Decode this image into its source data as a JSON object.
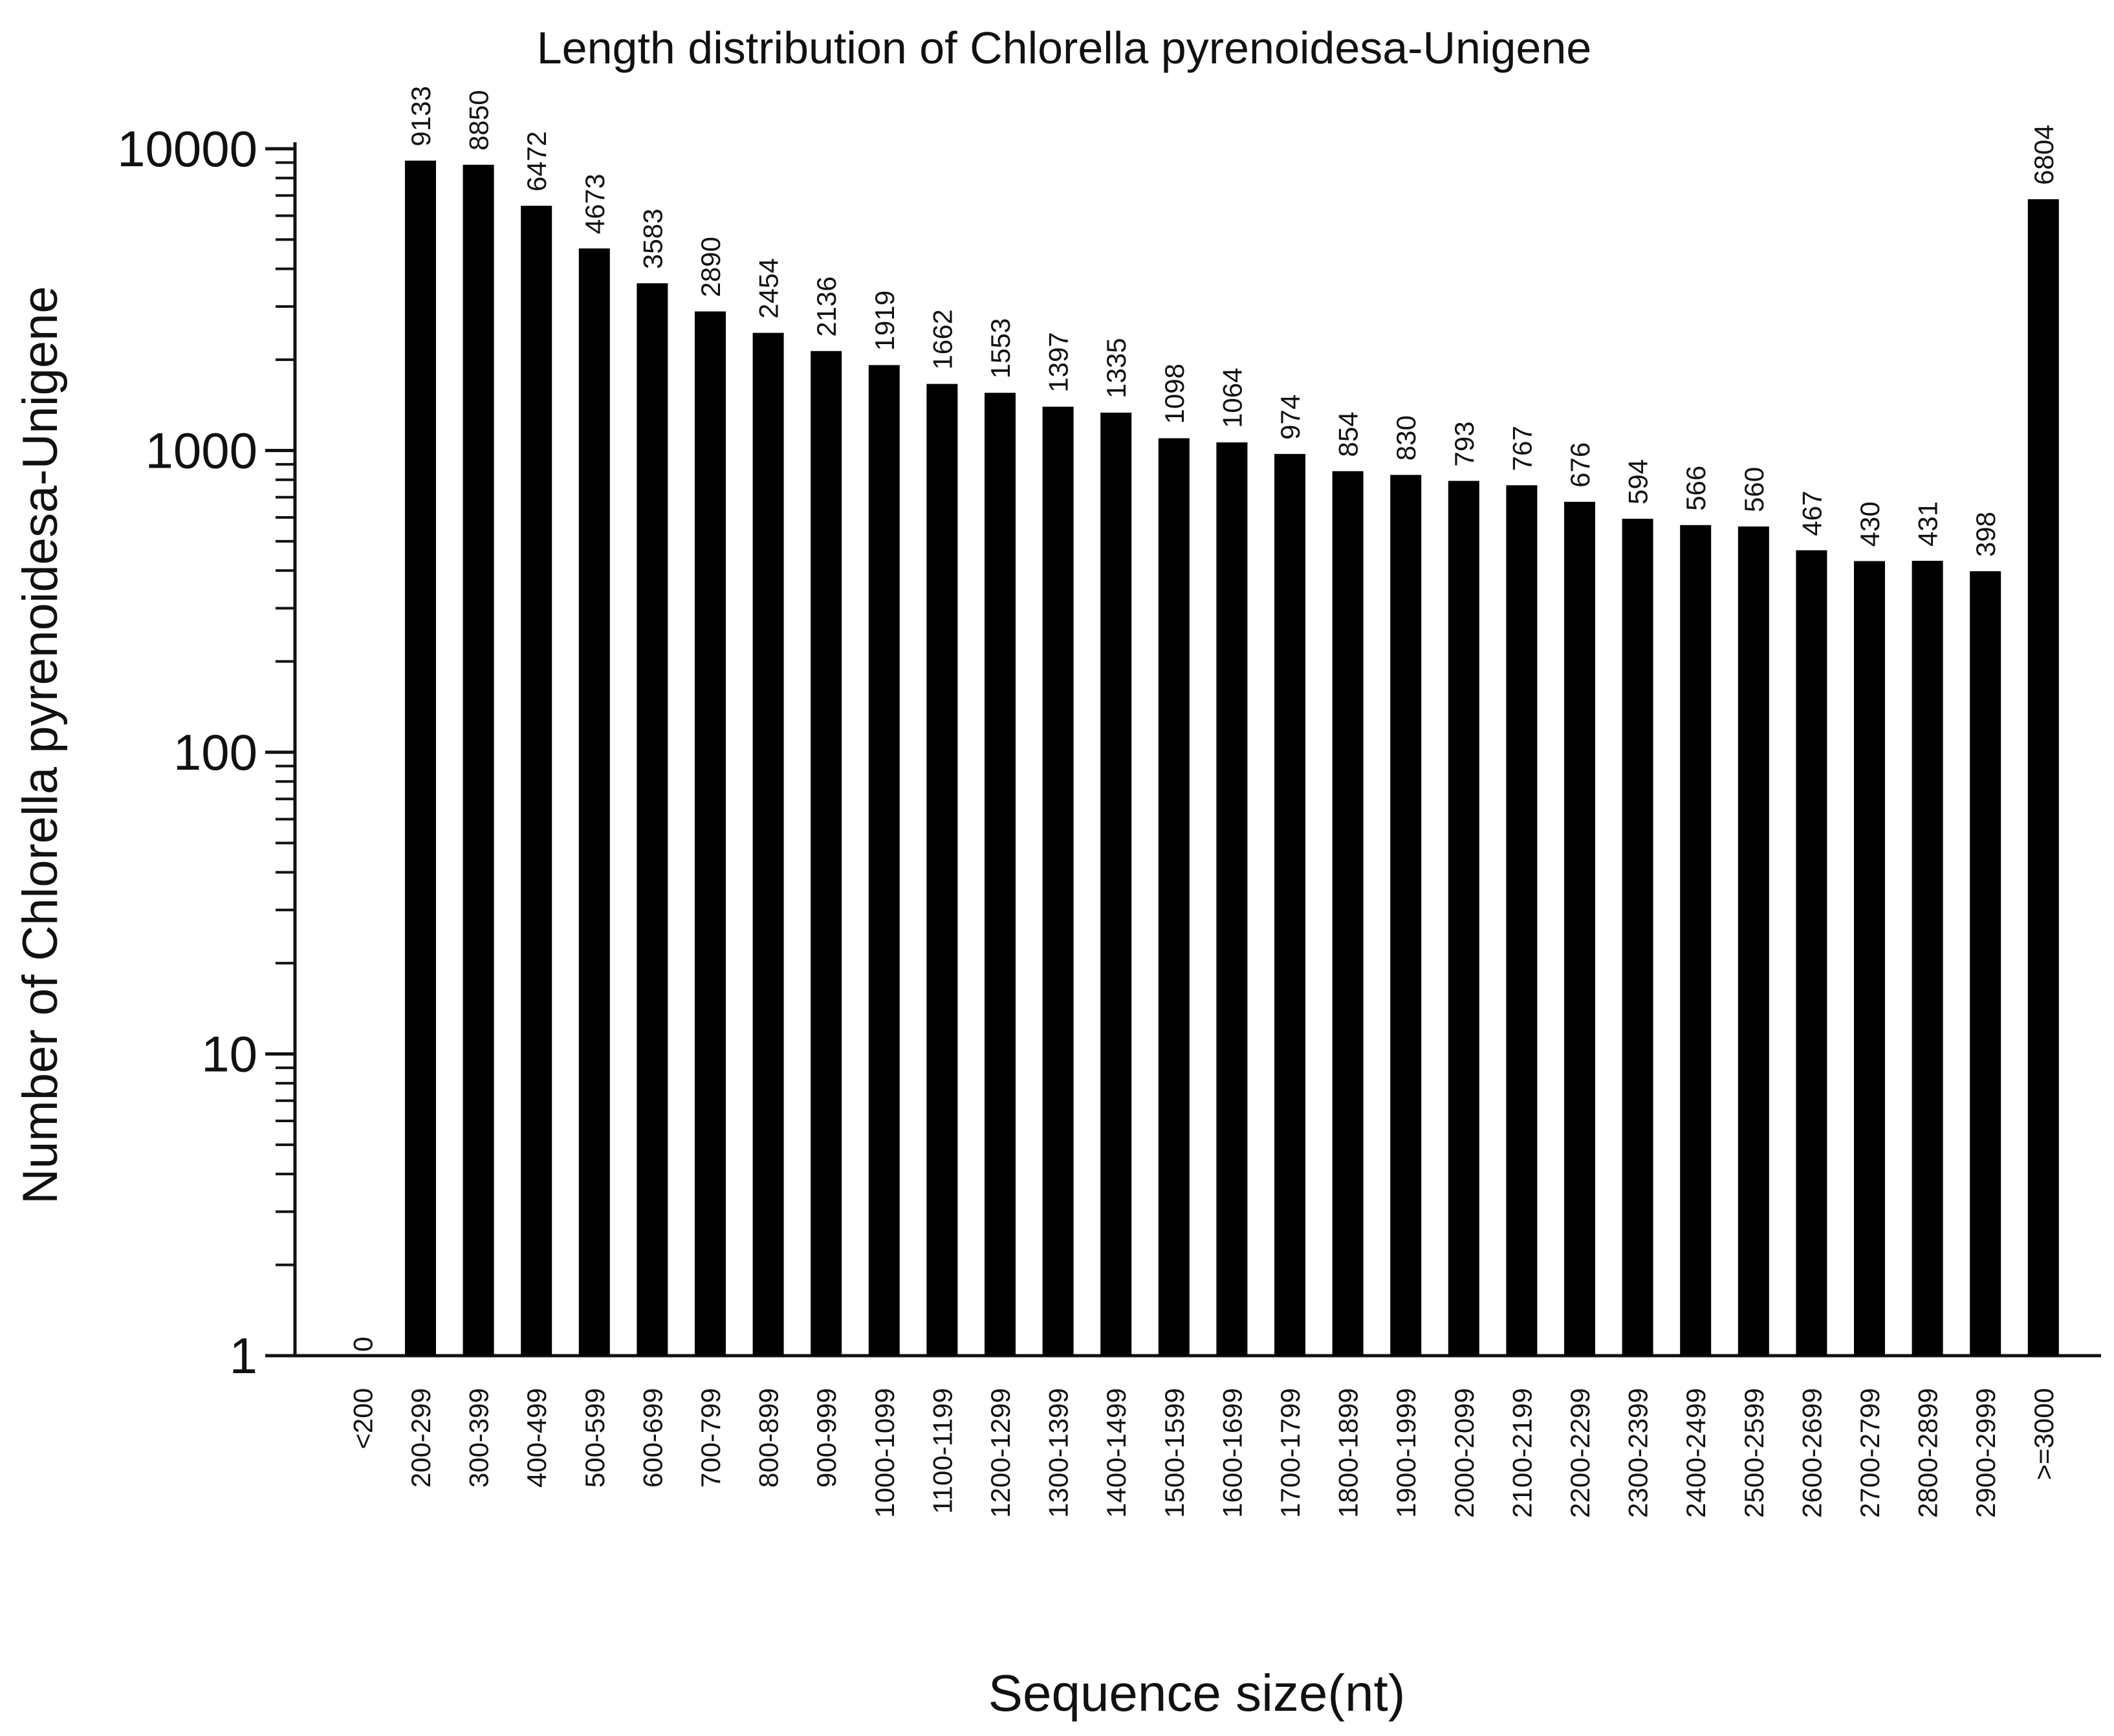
{
  "chart_data": {
    "type": "bar",
    "title": "Length distribution of Chlorella  pyrenoidesa-Unigene",
    "xlabel": "Sequence size(nt)",
    "ylabel": "Number of Chlorella  pyrenoidesa-Unigene",
    "yscale": "log",
    "ylim": [
      1,
      10000
    ],
    "yticks": [
      {
        "value": 1,
        "label": "1"
      },
      {
        "value": 10,
        "label": "10"
      },
      {
        "value": 100,
        "label": "100"
      },
      {
        "value": 1000,
        "label": "1000"
      },
      {
        "value": 10000,
        "label": "10000"
      }
    ],
    "grid": false,
    "bar_color": "#000000",
    "categories": [
      "<200",
      "200-299",
      "300-399",
      "400-499",
      "500-599",
      "600-699",
      "700-799",
      "800-899",
      "900-999",
      "1000-1099",
      "1100-1199",
      "1200-1299",
      "1300-1399",
      "1400-1499",
      "1500-1599",
      "1600-1699",
      "1700-1799",
      "1800-1899",
      "1900-1999",
      "2000-2099",
      "2100-2199",
      "2200-2299",
      "2300-2399",
      "2400-2499",
      "2500-2599",
      "2600-2699",
      "2700-2799",
      "2800-2899",
      "2900-2999",
      ">=3000"
    ],
    "values": [
      0,
      9133,
      8850,
      6472,
      4673,
      3583,
      2890,
      2454,
      2136,
      1919,
      1662,
      1553,
      1397,
      1335,
      1098,
      1064,
      974,
      854,
      830,
      793,
      767,
      676,
      594,
      566,
      560,
      467,
      430,
      431,
      398,
      6804
    ],
    "value_labels": [
      "0",
      "9133",
      "8850",
      "6472",
      "4673",
      "3583",
      "2890",
      "2454",
      "2136",
      "1919",
      "1662",
      "1553",
      "1397",
      "1335",
      "1098",
      "1064",
      "974",
      "854",
      "830",
      "793",
      "767",
      "676",
      "594",
      "566",
      "560",
      "467",
      "430",
      "431",
      "398",
      "6804"
    ]
  }
}
